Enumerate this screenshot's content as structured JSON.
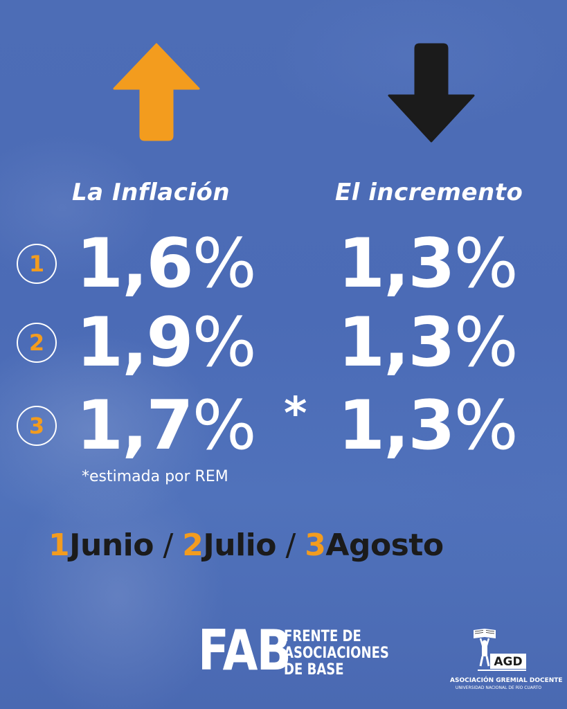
{
  "colors": {
    "accent": "#f39c1e",
    "text": "#ffffff",
    "dark": "#1b1b1b",
    "background": "#4d6db6"
  },
  "icons": {
    "up": "arrow-up-icon",
    "down": "arrow-down-icon"
  },
  "left": {
    "heading": "La Inflación",
    "rows": [
      {
        "num": "1",
        "value": "1,6",
        "pct": "%"
      },
      {
        "num": "2",
        "value": "1,9",
        "pct": "%"
      },
      {
        "num": "3",
        "value": "1,7",
        "pct": "%"
      }
    ],
    "asterisk": "*",
    "footnote": "*estimada por REM"
  },
  "right": {
    "heading": "El incremento",
    "rows": [
      {
        "value": "1,3",
        "pct": "%"
      },
      {
        "value": "1,3",
        "pct": "%"
      },
      {
        "value": "1,3",
        "pct": "%"
      }
    ]
  },
  "months": [
    {
      "num": "1",
      "name": "Junio"
    },
    {
      "num": "2",
      "name": "Julio"
    },
    {
      "num": "3",
      "name": "Agosto"
    }
  ],
  "month_separator": " / ",
  "footer": {
    "fab": {
      "acronym": "FAB",
      "line1": "FRENTE DE",
      "line2": "ASOCIACIONES",
      "line3": "DE BASE"
    },
    "agd": {
      "acronym": "AGD",
      "name": "ASOCIACIÓN GREMIAL DOCENTE",
      "sub": "UNIVERSIDAD NACIONAL DE RÍO CUARTO"
    }
  }
}
